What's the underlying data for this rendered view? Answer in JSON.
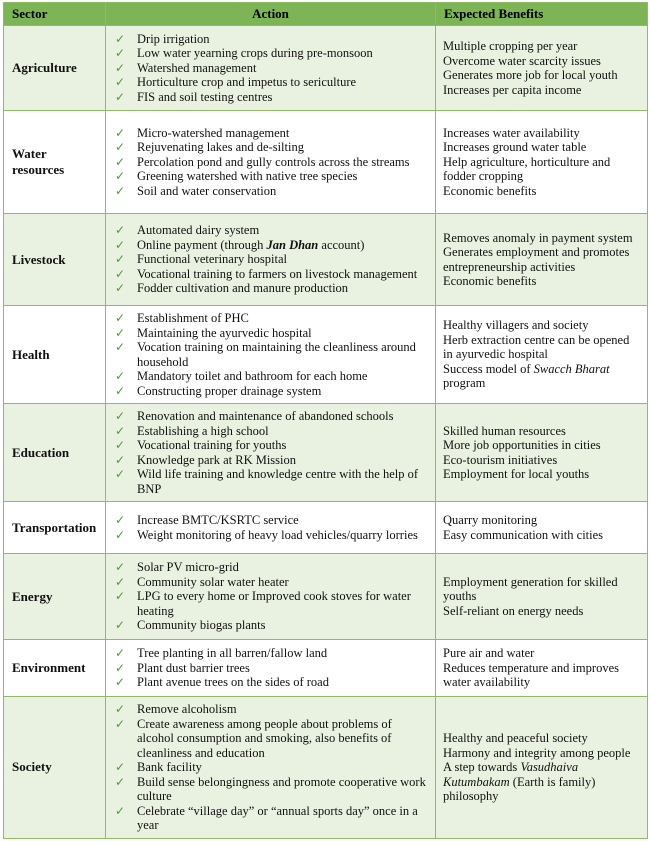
{
  "colors": {
    "header_bg": "#7CB456",
    "shaded_row_bg": "#E9F1E0",
    "border": "#8FBC63",
    "check": "#4F9A33",
    "text": "#111111"
  },
  "icons": {
    "check": "✓"
  },
  "table": {
    "columns": [
      {
        "label": "Sector"
      },
      {
        "label": "Action"
      },
      {
        "label": "Expected Benefits"
      }
    ],
    "rows": [
      {
        "sector": "Agriculture",
        "shaded": true,
        "actions": [
          "Drip irrigation",
          "Low water yearning crops during pre-monsoon",
          "Watershed management",
          "Horticulture crop and impetus to sericulture",
          "FIS and soil testing centres"
        ],
        "benefits": [
          "Multiple cropping per year",
          "Overcome water scarcity issues",
          "Generates more job for local youth",
          "Increases per capita income"
        ]
      },
      {
        "sector": "Water resources",
        "shaded": false,
        "actions": [
          "Micro-watershed management",
          "Rejuvenating lakes and de-silting",
          "Percolation pond and gully controls across the streams",
          "Greening watershed with native tree species",
          "Soil and water conservation"
        ],
        "benefits": [
          "Increases water availability",
          "Increases ground water table",
          "Help agriculture, horticulture and fodder cropping",
          "Economic benefits"
        ]
      },
      {
        "sector": "Livestock",
        "shaded": true,
        "actions": [
          "Automated dairy system",
          [
            {
              "text": "Online payment (through "
            },
            {
              "text": "Jan Dhan",
              "bold": true,
              "italic": true
            },
            {
              "text": " account)"
            }
          ],
          "Functional veterinary hospital",
          "Vocational training to farmers on livestock management",
          "Fodder cultivation and manure production"
        ],
        "benefits": [
          "Removes anomaly in payment system",
          "Generates employment and promotes entrepreneurship activities",
          "Economic benefits"
        ]
      },
      {
        "sector": "Health",
        "shaded": false,
        "actions": [
          "Establishment of PHC",
          "Maintaining the ayurvedic hospital",
          "Vocation training on maintaining the cleanliness around household",
          "Mandatory toilet and bathroom for each home",
          "Constructing proper drainage system"
        ],
        "benefits": [
          "Healthy villagers and society",
          "Herb extraction centre can be opened in ayurvedic hospital",
          [
            {
              "text": "Success model of "
            },
            {
              "text": "Swacch Bharat",
              "italic": true
            },
            {
              "text": " program"
            }
          ]
        ]
      },
      {
        "sector": "Education",
        "shaded": true,
        "actions": [
          "Renovation and maintenance of abandoned schools",
          "Establishing a high school",
          "Vocational training for youths",
          "Knowledge park at RK Mission",
          "Wild life training and knowledge centre with the help of BNP"
        ],
        "benefits": [
          "Skilled human resources",
          "More job opportunities in cities",
          "Eco-tourism initiatives",
          "Employment for local youths"
        ]
      },
      {
        "sector": "Transportation",
        "shaded": false,
        "actions": [
          "Increase BMTC/KSRTC service",
          "Weight monitoring of heavy load vehicles/quarry lorries"
        ],
        "benefits": [
          "Quarry monitoring",
          "Easy communication with cities"
        ]
      },
      {
        "sector": "Energy",
        "shaded": true,
        "actions": [
          "Solar PV micro-grid",
          "Community solar water heater",
          "LPG to every home or Improved cook stoves for water heating",
          "Community biogas plants"
        ],
        "benefits": [
          "Employment generation for skilled youths",
          "Self-reliant on energy needs"
        ]
      },
      {
        "sector": "Environment",
        "shaded": false,
        "actions": [
          "Tree planting in all barren/fallow land",
          "Plant dust barrier trees",
          "Plant avenue trees on the sides of road"
        ],
        "benefits": [
          "Pure air and water",
          "Reduces temperature and improves water availability"
        ]
      },
      {
        "sector": "Society",
        "shaded": true,
        "actions": [
          "Remove alcoholism",
          "Create awareness among people about problems of alcohol consumption and smoking, also benefits of cleanliness and education",
          "Bank facility",
          "Build sense belongingness and promote cooperative work culture",
          "Celebrate “village day” or “annual sports day” once in a year"
        ],
        "benefits": [
          "Healthy and peaceful society",
          "Harmony and integrity among people",
          [
            {
              "text": "A step towards "
            },
            {
              "text": "Vasudhaiva Kutumbakam",
              "italic": true
            },
            {
              "text": " (Earth is family) philosophy"
            }
          ]
        ]
      }
    ]
  }
}
